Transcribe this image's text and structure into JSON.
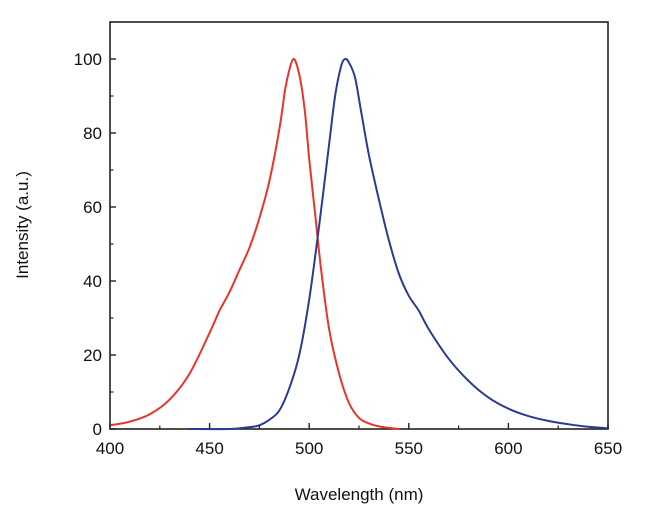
{
  "chart_data": {
    "type": "line",
    "title": "",
    "xlabel": "Wavelength (nm)",
    "ylabel": "Intensity (a.u.)",
    "xlim": [
      400,
      650
    ],
    "ylim": [
      0,
      110
    ],
    "xticks": [
      400,
      450,
      500,
      550,
      600,
      650
    ],
    "yticks": [
      0,
      20,
      40,
      60,
      80,
      100
    ],
    "grid": false,
    "legend": "none",
    "series": [
      {
        "color": "#e8342a",
        "x": [
          400,
          410,
          420,
          430,
          440,
          450,
          455,
          460,
          465,
          470,
          475,
          480,
          485,
          488,
          490,
          492,
          494,
          496,
          498,
          500,
          503,
          506,
          510,
          515,
          520,
          525,
          530,
          535,
          540,
          545
        ],
        "y": [
          1,
          2,
          4,
          8,
          15,
          26,
          32,
          37,
          43,
          49,
          57,
          67,
          81,
          92,
          97,
          100,
          98,
          93,
          85,
          73,
          58,
          43,
          27,
          15,
          7,
          3,
          1.5,
          0.7,
          0.3,
          0
        ]
      },
      {
        "color": "#2a3a96",
        "x": [
          440,
          460,
          470,
          475,
          480,
          485,
          490,
          495,
          500,
          505,
          510,
          513,
          516,
          518,
          520,
          523,
          526,
          530,
          535,
          540,
          545,
          550,
          555,
          560,
          570,
          580,
          590,
          600,
          610,
          620,
          630,
          640,
          650
        ],
        "y": [
          0,
          0,
          0.5,
          1,
          2.5,
          5,
          11,
          20,
          35,
          55,
          77,
          90,
          98,
          100,
          99,
          95,
          86,
          74,
          62,
          51,
          42,
          36,
          32,
          27,
          19,
          13,
          8.5,
          5.5,
          3.5,
          2.2,
          1.3,
          0.6,
          0.2
        ]
      }
    ]
  }
}
